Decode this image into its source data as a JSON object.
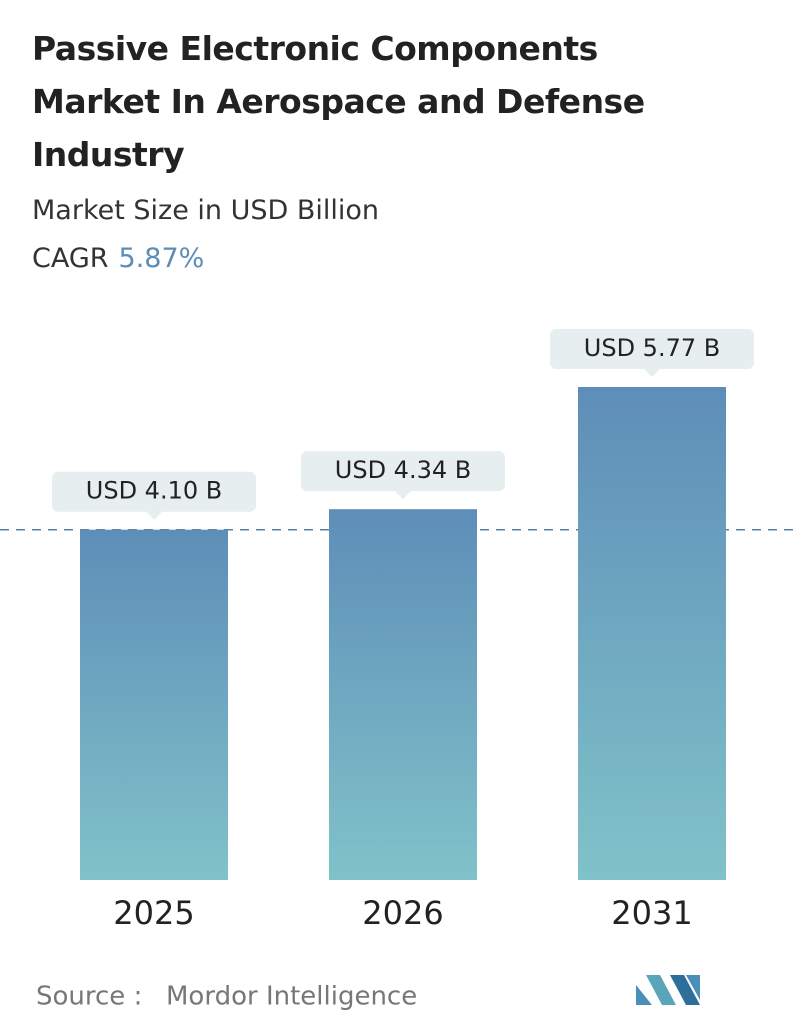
{
  "chart_data": {
    "type": "bar",
    "title": "Passive Electronic Components Market In Aerospace and Defense Industry",
    "subtitle": "Market Size in USD Billion",
    "cagr_label": "CAGR",
    "cagr_value": "5.87%",
    "categories": [
      "2025",
      "2026",
      "2031"
    ],
    "values": [
      4.1,
      4.34,
      5.77
    ],
    "value_labels": [
      "USD 4.10 B",
      "USD 4.34 B",
      "USD 5.77 B"
    ],
    "color_top": "#5e8eb8",
    "color_bottom": "#80c2c9",
    "source_label": "Source :",
    "source": "Mordor Intelligence"
  }
}
